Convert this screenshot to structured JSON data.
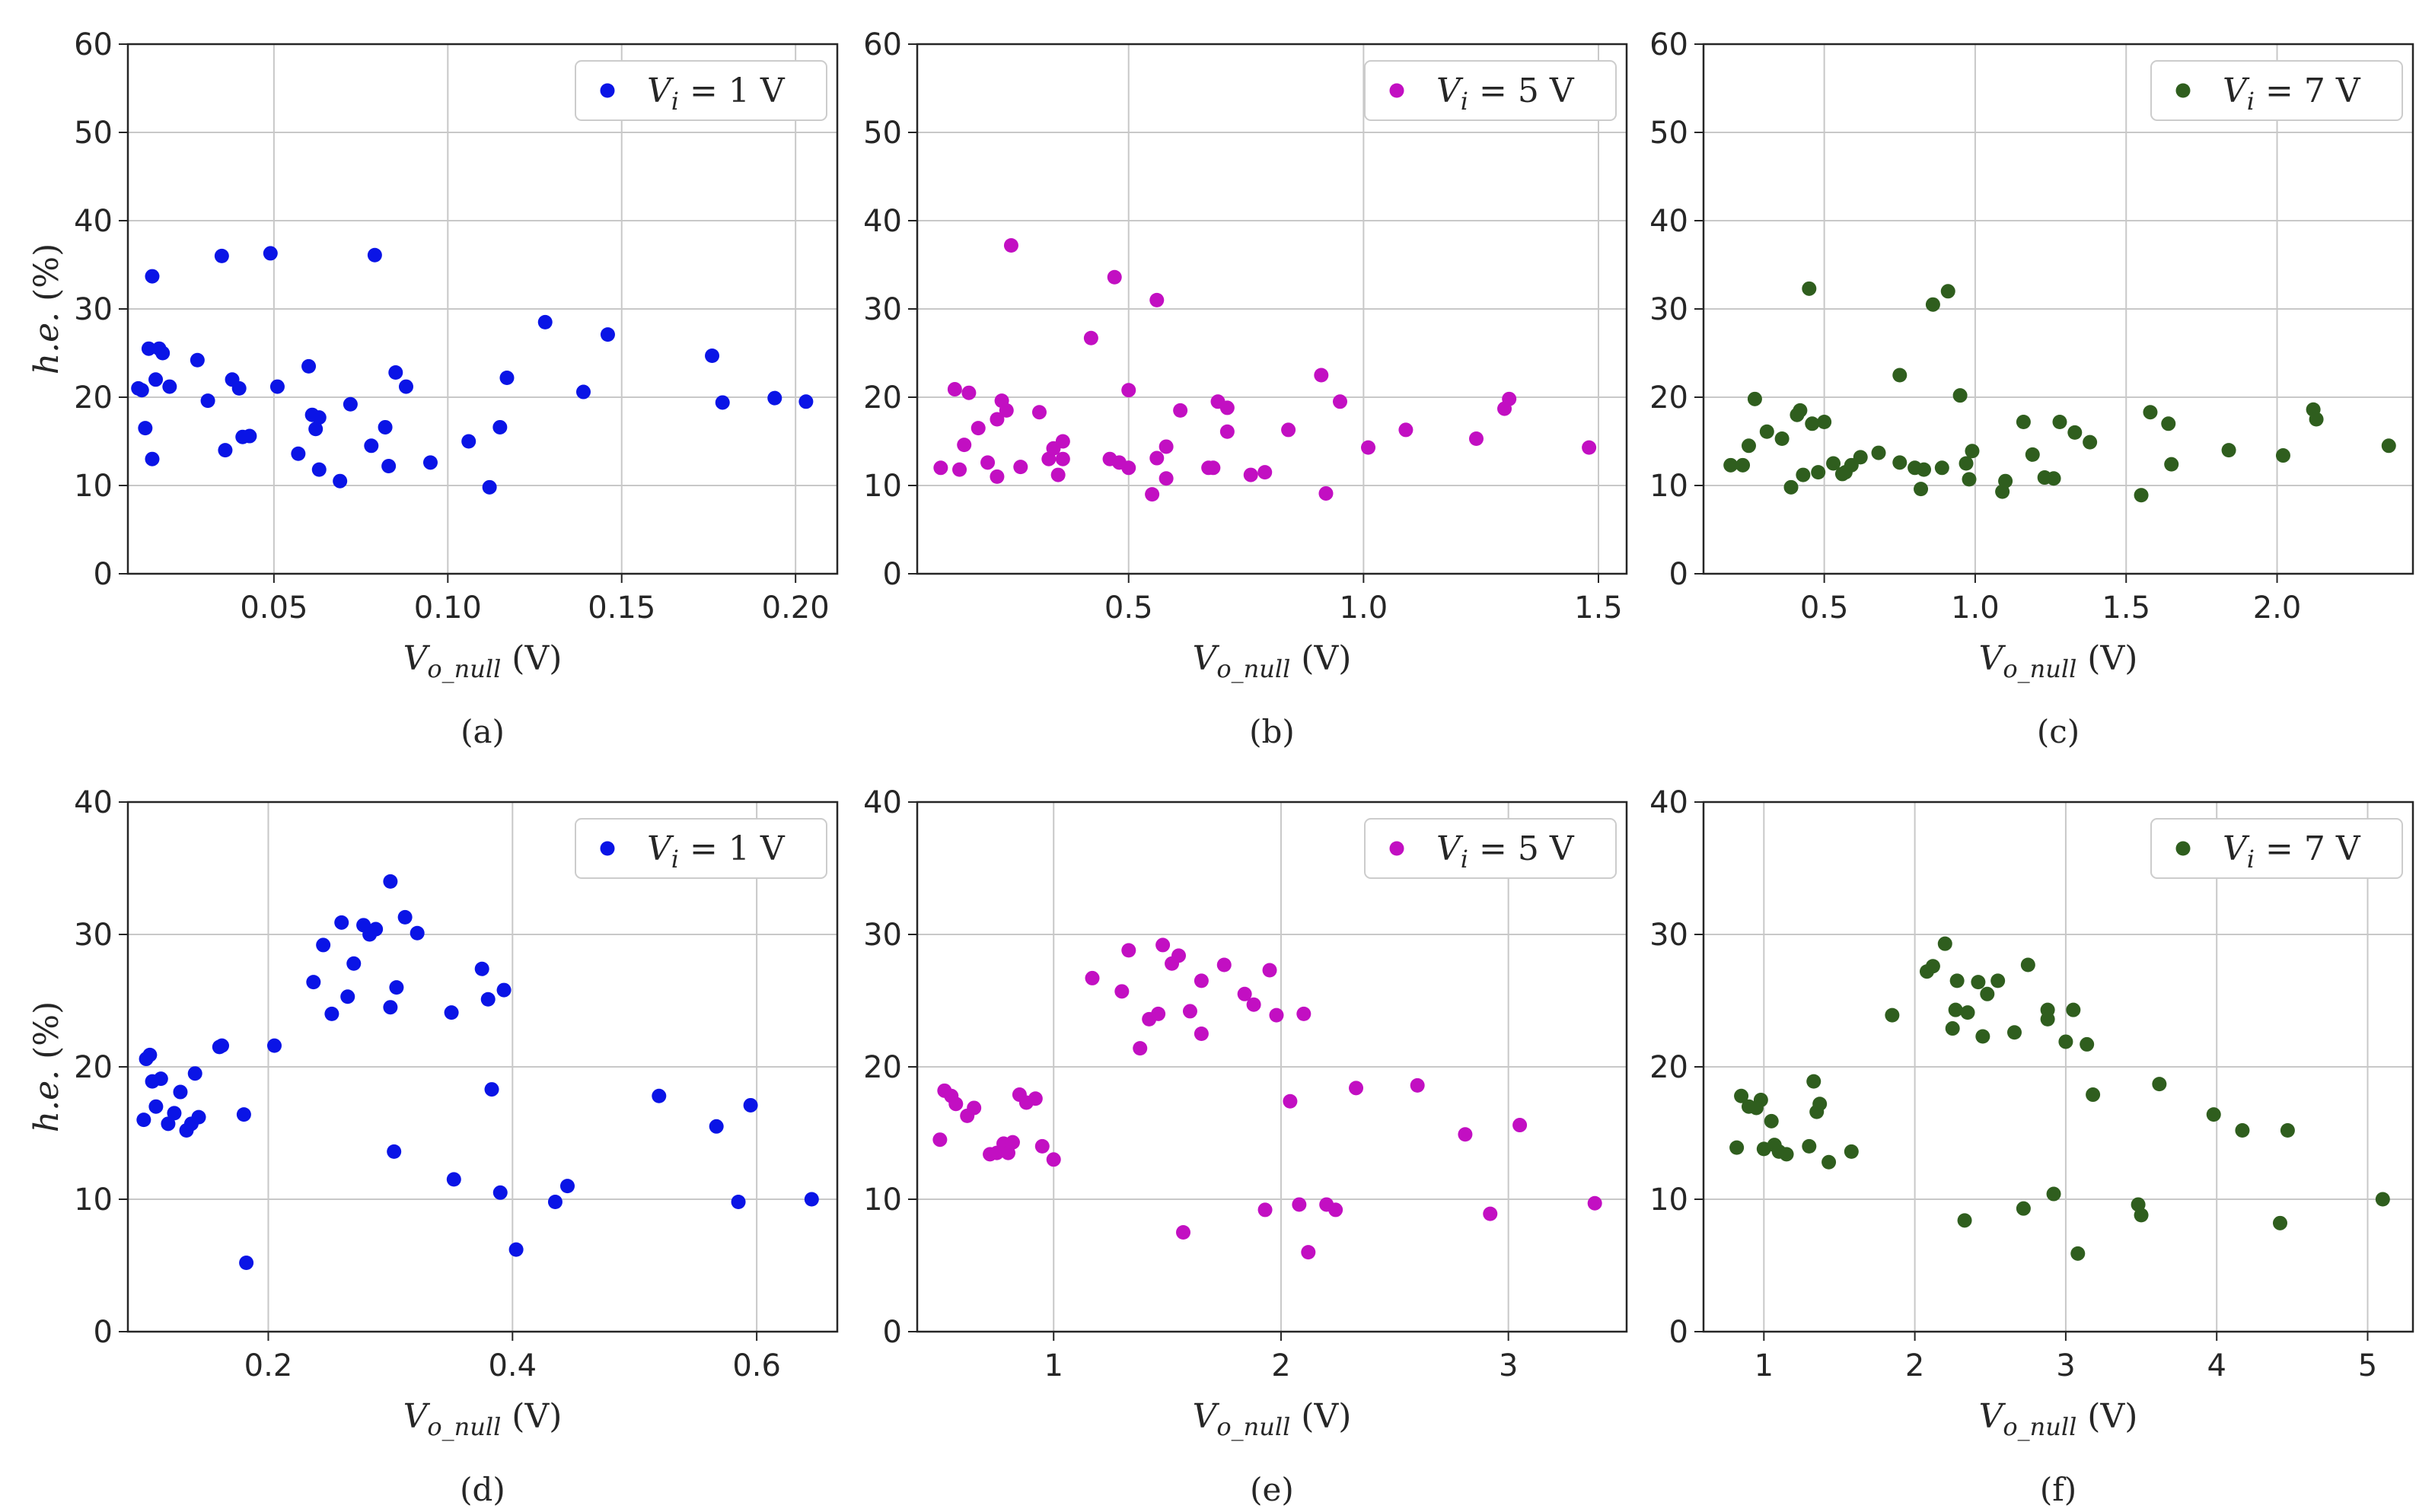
{
  "chart_data": [
    {
      "panel": "(a)",
      "type": "scatter",
      "xlabel": "V_{o_null} (V)",
      "ylabel": "h.e. (%)",
      "xlim": [
        0.008,
        0.212
      ],
      "ylim": [
        0,
        60
      ],
      "xticks": [
        0.05,
        0.1,
        0.15,
        0.2
      ],
      "xtick_labels": [
        "0.05",
        "0.10",
        "0.15",
        "0.20"
      ],
      "yticks": [
        0,
        10,
        20,
        30,
        40,
        50,
        60
      ],
      "ytick_labels": [
        "0",
        "10",
        "20",
        "30",
        "40",
        "50",
        "60"
      ],
      "legend": "V_i = 1 V",
      "legend_loc": "top-right",
      "grid": true,
      "color": "#0a14e6",
      "points": [
        [
          0.011,
          21
        ],
        [
          0.012,
          20.8
        ],
        [
          0.013,
          16.5
        ],
        [
          0.014,
          25.5
        ],
        [
          0.015,
          13
        ],
        [
          0.015,
          33.7
        ],
        [
          0.016,
          22
        ],
        [
          0.017,
          25.5
        ],
        [
          0.018,
          25
        ],
        [
          0.02,
          21.2
        ],
        [
          0.028,
          24.2
        ],
        [
          0.031,
          19.6
        ],
        [
          0.035,
          36
        ],
        [
          0.036,
          14
        ],
        [
          0.038,
          22
        ],
        [
          0.04,
          21
        ],
        [
          0.041,
          15.5
        ],
        [
          0.043,
          15.6
        ],
        [
          0.049,
          36.3
        ],
        [
          0.051,
          21.2
        ],
        [
          0.057,
          13.6
        ],
        [
          0.06,
          23.5
        ],
        [
          0.061,
          18
        ],
        [
          0.062,
          16.4
        ],
        [
          0.063,
          17.7
        ],
        [
          0.063,
          11.8
        ],
        [
          0.069,
          10.5
        ],
        [
          0.072,
          19.2
        ],
        [
          0.078,
          14.5
        ],
        [
          0.079,
          36.1
        ],
        [
          0.082,
          16.6
        ],
        [
          0.083,
          12.2
        ],
        [
          0.085,
          22.8
        ],
        [
          0.088,
          21.2
        ],
        [
          0.095,
          12.6
        ],
        [
          0.106,
          15
        ],
        [
          0.112,
          9.8
        ],
        [
          0.115,
          16.6
        ],
        [
          0.117,
          22.2
        ],
        [
          0.128,
          28.5
        ],
        [
          0.139,
          20.6
        ],
        [
          0.146,
          27.1
        ],
        [
          0.176,
          24.7
        ],
        [
          0.179,
          19.4
        ],
        [
          0.194,
          19.9
        ],
        [
          0.203,
          19.5
        ]
      ]
    },
    {
      "panel": "(b)",
      "type": "scatter",
      "xlabel": "V_{o_null} (V)",
      "ylabel": "",
      "xlim": [
        0.05,
        1.56
      ],
      "ylim": [
        0,
        60
      ],
      "xticks": [
        0.5,
        1.0,
        1.5
      ],
      "xtick_labels": [
        "0.5",
        "1.0",
        "1.5"
      ],
      "yticks": [
        0,
        10,
        20,
        30,
        40,
        50,
        60
      ],
      "ytick_labels": [
        "0",
        "10",
        "20",
        "30",
        "40",
        "50",
        "60"
      ],
      "legend": "V_i = 5 V",
      "legend_loc": "top-right",
      "grid": true,
      "color": "#c20fc2",
      "points": [
        [
          0.1,
          12
        ],
        [
          0.13,
          20.9
        ],
        [
          0.14,
          11.8
        ],
        [
          0.15,
          14.6
        ],
        [
          0.16,
          20.5
        ],
        [
          0.18,
          16.5
        ],
        [
          0.2,
          12.6
        ],
        [
          0.22,
          11
        ],
        [
          0.22,
          17.5
        ],
        [
          0.23,
          19.6
        ],
        [
          0.24,
          18.5
        ],
        [
          0.25,
          37.2
        ],
        [
          0.27,
          12.1
        ],
        [
          0.31,
          18.3
        ],
        [
          0.33,
          13
        ],
        [
          0.34,
          14.2
        ],
        [
          0.35,
          11.2
        ],
        [
          0.36,
          15
        ],
        [
          0.36,
          13
        ],
        [
          0.42,
          26.7
        ],
        [
          0.46,
          13
        ],
        [
          0.47,
          33.6
        ],
        [
          0.48,
          12.6
        ],
        [
          0.5,
          12
        ],
        [
          0.5,
          20.8
        ],
        [
          0.55,
          9
        ],
        [
          0.56,
          13.1
        ],
        [
          0.56,
          31
        ],
        [
          0.58,
          10.8
        ],
        [
          0.58,
          14.4
        ],
        [
          0.61,
          18.5
        ],
        [
          0.67,
          12
        ],
        [
          0.68,
          12
        ],
        [
          0.69,
          19.5
        ],
        [
          0.71,
          16.1
        ],
        [
          0.71,
          18.8
        ],
        [
          0.76,
          11.2
        ],
        [
          0.79,
          11.5
        ],
        [
          0.84,
          16.3
        ],
        [
          0.91,
          22.5
        ],
        [
          0.92,
          9.1
        ],
        [
          0.95,
          19.5
        ],
        [
          1.01,
          14.3
        ],
        [
          1.09,
          16.3
        ],
        [
          1.24,
          15.3
        ],
        [
          1.3,
          18.7
        ],
        [
          1.31,
          19.8
        ],
        [
          1.48,
          14.3
        ]
      ]
    },
    {
      "panel": "(c)",
      "type": "scatter",
      "xlabel": "V_{o_null} (V)",
      "ylabel": "",
      "xlim": [
        0.1,
        2.45
      ],
      "ylim": [
        0,
        60
      ],
      "xticks": [
        0.5,
        1.0,
        1.5,
        2.0
      ],
      "xtick_labels": [
        "0.5",
        "1.0",
        "1.5",
        "2.0"
      ],
      "yticks": [
        0,
        10,
        20,
        30,
        40,
        50,
        60
      ],
      "ytick_labels": [
        "0",
        "10",
        "20",
        "30",
        "40",
        "50",
        "60"
      ],
      "legend": "V_i = 7 V",
      "legend_loc": "top-right",
      "grid": true,
      "color": "#2f5e1e",
      "points": [
        [
          0.19,
          12.3
        ],
        [
          0.23,
          12.3
        ],
        [
          0.25,
          14.5
        ],
        [
          0.27,
          19.8
        ],
        [
          0.31,
          16.1
        ],
        [
          0.36,
          15.3
        ],
        [
          0.39,
          9.8
        ],
        [
          0.41,
          18
        ],
        [
          0.42,
          18.5
        ],
        [
          0.43,
          11.2
        ],
        [
          0.45,
          32.3
        ],
        [
          0.46,
          17
        ],
        [
          0.48,
          11.5
        ],
        [
          0.5,
          17.2
        ],
        [
          0.53,
          12.5
        ],
        [
          0.56,
          11.3
        ],
        [
          0.57,
          11.5
        ],
        [
          0.59,
          12.3
        ],
        [
          0.62,
          13.2
        ],
        [
          0.68,
          13.7
        ],
        [
          0.75,
          22.5
        ],
        [
          0.75,
          12.6
        ],
        [
          0.8,
          12
        ],
        [
          0.82,
          9.6
        ],
        [
          0.83,
          11.8
        ],
        [
          0.86,
          30.5
        ],
        [
          0.89,
          12
        ],
        [
          0.91,
          32
        ],
        [
          0.95,
          20.2
        ],
        [
          0.97,
          12.5
        ],
        [
          0.98,
          10.7
        ],
        [
          0.99,
          13.9
        ],
        [
          1.09,
          9.3
        ],
        [
          1.1,
          10.5
        ],
        [
          1.16,
          17.2
        ],
        [
          1.19,
          13.5
        ],
        [
          1.23,
          10.9
        ],
        [
          1.26,
          10.8
        ],
        [
          1.28,
          17.2
        ],
        [
          1.33,
          16
        ],
        [
          1.38,
          14.9
        ],
        [
          1.55,
          8.9
        ],
        [
          1.58,
          18.3
        ],
        [
          1.64,
          17
        ],
        [
          1.65,
          12.4
        ],
        [
          1.84,
          14
        ],
        [
          2.02,
          13.4
        ],
        [
          2.12,
          18.6
        ],
        [
          2.13,
          17.5
        ],
        [
          2.37,
          14.5
        ]
      ]
    },
    {
      "panel": "(d)",
      "type": "scatter",
      "xlabel": "V_{o_null} (V)",
      "ylabel": "h.e. (%)",
      "xlim": [
        0.085,
        0.666
      ],
      "ylim": [
        0,
        40
      ],
      "xticks": [
        0.2,
        0.4,
        0.6
      ],
      "xtick_labels": [
        "0.2",
        "0.4",
        "0.6"
      ],
      "yticks": [
        0,
        10,
        20,
        30,
        40
      ],
      "ytick_labels": [
        "0",
        "10",
        "20",
        "30",
        "40"
      ],
      "legend": "V_i = 1 V",
      "legend_loc": "top-right",
      "grid": true,
      "color": "#0a14e6",
      "points": [
        [
          0.098,
          16
        ],
        [
          0.1,
          20.6
        ],
        [
          0.103,
          20.9
        ],
        [
          0.105,
          18.9
        ],
        [
          0.108,
          17
        ],
        [
          0.112,
          19.1
        ],
        [
          0.118,
          15.7
        ],
        [
          0.123,
          16.5
        ],
        [
          0.128,
          18.1
        ],
        [
          0.133,
          15.2
        ],
        [
          0.137,
          15.7
        ],
        [
          0.14,
          19.5
        ],
        [
          0.143,
          16.2
        ],
        [
          0.16,
          21.5
        ],
        [
          0.162,
          21.6
        ],
        [
          0.18,
          16.4
        ],
        [
          0.182,
          5.2
        ],
        [
          0.205,
          21.6
        ],
        [
          0.237,
          26.4
        ],
        [
          0.245,
          29.2
        ],
        [
          0.252,
          24
        ],
        [
          0.26,
          30.9
        ],
        [
          0.265,
          25.3
        ],
        [
          0.27,
          27.8
        ],
        [
          0.278,
          30.7
        ],
        [
          0.283,
          30
        ],
        [
          0.288,
          30.4
        ],
        [
          0.3,
          34
        ],
        [
          0.3,
          24.5
        ],
        [
          0.303,
          13.6
        ],
        [
          0.305,
          26
        ],
        [
          0.312,
          31.3
        ],
        [
          0.322,
          30.1
        ],
        [
          0.35,
          24.1
        ],
        [
          0.352,
          11.5
        ],
        [
          0.375,
          27.4
        ],
        [
          0.38,
          25.1
        ],
        [
          0.383,
          18.3
        ],
        [
          0.39,
          10.5
        ],
        [
          0.393,
          25.8
        ],
        [
          0.403,
          6.2
        ],
        [
          0.435,
          9.8
        ],
        [
          0.445,
          11
        ],
        [
          0.52,
          17.8
        ],
        [
          0.567,
          15.5
        ],
        [
          0.585,
          9.8
        ],
        [
          0.595,
          17.1
        ],
        [
          0.645,
          10
        ]
      ]
    },
    {
      "panel": "(e)",
      "type": "scatter",
      "xlabel": "V_{o_null} (V)",
      "ylabel": "",
      "xlim": [
        0.4,
        3.52
      ],
      "ylim": [
        0,
        40
      ],
      "xticks": [
        1,
        2,
        3
      ],
      "xtick_labels": [
        "1",
        "2",
        "3"
      ],
      "yticks": [
        0,
        10,
        20,
        30,
        40
      ],
      "ytick_labels": [
        "0",
        "10",
        "20",
        "30",
        "40"
      ],
      "legend": "V_i = 5 V",
      "legend_loc": "top-right",
      "grid": true,
      "color": "#c20fc2",
      "points": [
        [
          0.5,
          14.5
        ],
        [
          0.52,
          18.2
        ],
        [
          0.55,
          17.8
        ],
        [
          0.57,
          17.2
        ],
        [
          0.62,
          16.3
        ],
        [
          0.65,
          16.9
        ],
        [
          0.72,
          13.4
        ],
        [
          0.75,
          13.5
        ],
        [
          0.78,
          14.2
        ],
        [
          0.8,
          13.5
        ],
        [
          0.82,
          14.3
        ],
        [
          0.85,
          17.9
        ],
        [
          0.88,
          17.3
        ],
        [
          0.92,
          17.6
        ],
        [
          0.95,
          14
        ],
        [
          1.0,
          13
        ],
        [
          1.17,
          26.7
        ],
        [
          1.3,
          25.7
        ],
        [
          1.33,
          28.8
        ],
        [
          1.38,
          21.4
        ],
        [
          1.42,
          23.6
        ],
        [
          1.46,
          24
        ],
        [
          1.48,
          29.2
        ],
        [
          1.52,
          27.8
        ],
        [
          1.55,
          28.4
        ],
        [
          1.57,
          7.5
        ],
        [
          1.6,
          24.2
        ],
        [
          1.65,
          22.5
        ],
        [
          1.65,
          26.5
        ],
        [
          1.75,
          27.7
        ],
        [
          1.84,
          25.5
        ],
        [
          1.88,
          24.7
        ],
        [
          1.93,
          9.2
        ],
        [
          1.95,
          27.3
        ],
        [
          1.98,
          23.9
        ],
        [
          2.04,
          17.4
        ],
        [
          2.08,
          9.6
        ],
        [
          2.1,
          24
        ],
        [
          2.12,
          6
        ],
        [
          2.2,
          9.6
        ],
        [
          2.24,
          9.2
        ],
        [
          2.33,
          18.4
        ],
        [
          2.6,
          18.6
        ],
        [
          2.81,
          14.9
        ],
        [
          2.92,
          8.9
        ],
        [
          3.05,
          15.6
        ],
        [
          3.38,
          9.7
        ]
      ]
    },
    {
      "panel": "(f)",
      "type": "scatter",
      "xlabel": "V_{o_null} (V)",
      "ylabel": "",
      "xlim": [
        0.6,
        5.3
      ],
      "ylim": [
        0,
        40
      ],
      "xticks": [
        1,
        2,
        3,
        4,
        5
      ],
      "xtick_labels": [
        "1",
        "2",
        "3",
        "4",
        "5"
      ],
      "yticks": [
        0,
        10,
        20,
        30,
        40
      ],
      "ytick_labels": [
        "0",
        "10",
        "20",
        "30",
        "40"
      ],
      "legend": "V_i = 7 V",
      "legend_loc": "top-right",
      "grid": true,
      "color": "#2f5e1e",
      "points": [
        [
          0.82,
          13.9
        ],
        [
          0.85,
          17.8
        ],
        [
          0.9,
          17
        ],
        [
          0.95,
          16.9
        ],
        [
          0.98,
          17.5
        ],
        [
          1.0,
          13.8
        ],
        [
          1.05,
          15.9
        ],
        [
          1.07,
          14.1
        ],
        [
          1.1,
          13.6
        ],
        [
          1.15,
          13.4
        ],
        [
          1.3,
          14
        ],
        [
          1.33,
          18.9
        ],
        [
          1.35,
          16.6
        ],
        [
          1.37,
          17.2
        ],
        [
          1.43,
          12.8
        ],
        [
          1.58,
          13.6
        ],
        [
          1.85,
          23.9
        ],
        [
          2.08,
          27.2
        ],
        [
          2.12,
          27.6
        ],
        [
          2.2,
          29.3
        ],
        [
          2.25,
          22.9
        ],
        [
          2.27,
          24.3
        ],
        [
          2.28,
          26.5
        ],
        [
          2.33,
          8.4
        ],
        [
          2.35,
          24.1
        ],
        [
          2.42,
          26.4
        ],
        [
          2.45,
          22.3
        ],
        [
          2.48,
          25.5
        ],
        [
          2.55,
          26.5
        ],
        [
          2.66,
          22.6
        ],
        [
          2.72,
          9.3
        ],
        [
          2.75,
          27.7
        ],
        [
          2.88,
          24.3
        ],
        [
          2.88,
          23.6
        ],
        [
          2.92,
          10.4
        ],
        [
          3.0,
          21.9
        ],
        [
          3.05,
          24.3
        ],
        [
          3.08,
          5.9
        ],
        [
          3.14,
          21.7
        ],
        [
          3.18,
          17.9
        ],
        [
          3.48,
          9.6
        ],
        [
          3.5,
          8.8
        ],
        [
          3.62,
          18.7
        ],
        [
          3.98,
          16.4
        ],
        [
          4.17,
          15.2
        ],
        [
          4.42,
          8.2
        ],
        [
          4.47,
          15.2
        ],
        [
          5.1,
          10
        ]
      ]
    }
  ]
}
